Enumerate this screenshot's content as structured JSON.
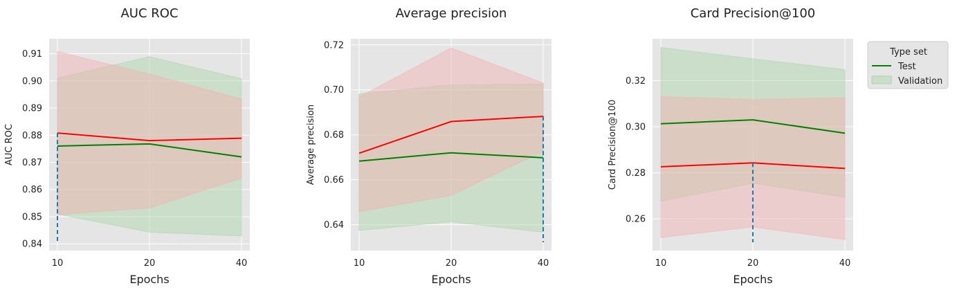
{
  "chart_data": [
    {
      "type": "line",
      "title": "AUC ROC",
      "xlabel": "Epochs",
      "ylabel": "AUC ROC",
      "x": [
        10,
        20,
        40
      ],
      "x_tick_labels": [
        "10",
        "20",
        "40"
      ],
      "ylim": [
        0.8375,
        0.9155
      ],
      "y_ticks": [
        0.84,
        0.85,
        0.86,
        0.87,
        0.88,
        0.89,
        0.9,
        0.91
      ],
      "y_tick_labels": [
        "0.84",
        "0.85",
        "0.86",
        "0.87",
        "0.88",
        "0.89",
        "0.90",
        "0.91"
      ],
      "grid": true,
      "series": [
        {
          "name": "Test",
          "color": "#008000",
          "values": [
            0.876,
            0.8768,
            0.872
          ],
          "band_lower": [
            0.851,
            0.8443,
            0.8429
          ],
          "band_upper": [
            0.901,
            0.9089,
            0.9008
          ],
          "band_color": "#a8d5a8"
        },
        {
          "color": "#ff0000",
          "values": [
            0.8808,
            0.878,
            0.8789
          ],
          "band_lower": [
            0.8508,
            0.8532,
            0.8642
          ],
          "band_upper": [
            0.9108,
            0.9025,
            0.8933
          ],
          "band_color": "#f4b0b0"
        }
      ],
      "vline_x": 10,
      "vline_color": "#1f77b4"
    },
    {
      "type": "line",
      "title": "Average precision",
      "xlabel": "Epochs",
      "ylabel": "Average precision",
      "x": [
        10,
        20,
        40
      ],
      "x_tick_labels": [
        "10",
        "20",
        "40"
      ],
      "ylim": [
        0.6285,
        0.7227
      ],
      "y_ticks": [
        0.64,
        0.66,
        0.68,
        0.7,
        0.72
      ],
      "y_tick_labels": [
        "0.64",
        "0.66",
        "0.68",
        "0.70",
        "0.72"
      ],
      "grid": true,
      "series": [
        {
          "name": "Test",
          "color": "#008000",
          "values": [
            0.6683,
            0.672,
            0.6698
          ],
          "band_lower": [
            0.6375,
            0.6413,
            0.6367
          ],
          "band_upper": [
            0.6982,
            0.7022,
            0.7025
          ],
          "band_color": "#a8d5a8"
        },
        {
          "color": "#ff0000",
          "values": [
            0.6718,
            0.6859,
            0.6882
          ],
          "band_lower": [
            0.6458,
            0.6531,
            0.6727
          ],
          "band_upper": [
            0.6968,
            0.7186,
            0.703
          ],
          "band_color": "#f4b0b0"
        }
      ],
      "vline_x": 40,
      "vline_color": "#1f77b4"
    },
    {
      "type": "line",
      "title": "Card Precision@100",
      "xlabel": "Epochs",
      "ylabel": "Card Precision@100",
      "x": [
        10,
        20,
        40
      ],
      "x_tick_labels": [
        "10",
        "20",
        "40"
      ],
      "ylim": [
        0.2462,
        0.3382
      ],
      "y_ticks": [
        0.26,
        0.28,
        0.3,
        0.32
      ],
      "y_tick_labels": [
        "0.26",
        "0.28",
        "0.30",
        "0.32"
      ],
      "grid": true,
      "series": [
        {
          "name": "Test",
          "color": "#008000",
          "values": [
            0.3013,
            0.303,
            0.2972
          ],
          "band_lower": [
            0.2677,
            0.2755,
            0.2694
          ],
          "band_upper": [
            0.3344,
            0.3295,
            0.3248
          ],
          "band_color": "#a8d5a8"
        },
        {
          "color": "#ff0000",
          "values": [
            0.2826,
            0.2843,
            0.2819
          ],
          "band_lower": [
            0.2519,
            0.2565,
            0.251
          ],
          "band_upper": [
            0.3131,
            0.3118,
            0.3126
          ],
          "band_color": "#f4b0b0"
        }
      ],
      "vline_x": 20,
      "vline_color": "#1f77b4"
    }
  ],
  "legend": {
    "title": "Type set",
    "entries": [
      {
        "label": "Test",
        "kind": "line",
        "color": "#008000"
      },
      {
        "label": "Validation",
        "kind": "patch",
        "color": "#a8d5a8"
      }
    ],
    "placement": "upper-right-outside"
  },
  "colors": {
    "plot_background": "#e5e5e5",
    "grid": "#ffffff"
  }
}
